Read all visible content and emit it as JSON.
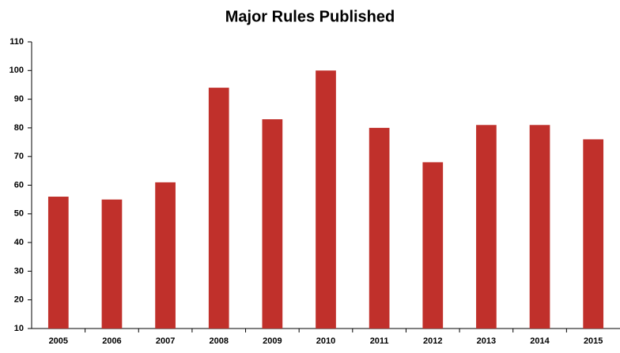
{
  "chart_data": {
    "type": "bar",
    "title": "Major Rules Published",
    "categories": [
      "2005",
      "2006",
      "2007",
      "2008",
      "2009",
      "2010",
      "2011",
      "2012",
      "2013",
      "2014",
      "2015"
    ],
    "values": [
      56,
      55,
      61,
      94,
      83,
      100,
      80,
      68,
      81,
      81,
      76
    ],
    "color": "#c0302b",
    "ylim": [
      10,
      110
    ],
    "yticks": [
      10,
      20,
      30,
      40,
      50,
      60,
      70,
      80,
      90,
      100,
      110
    ],
    "grid": false
  }
}
